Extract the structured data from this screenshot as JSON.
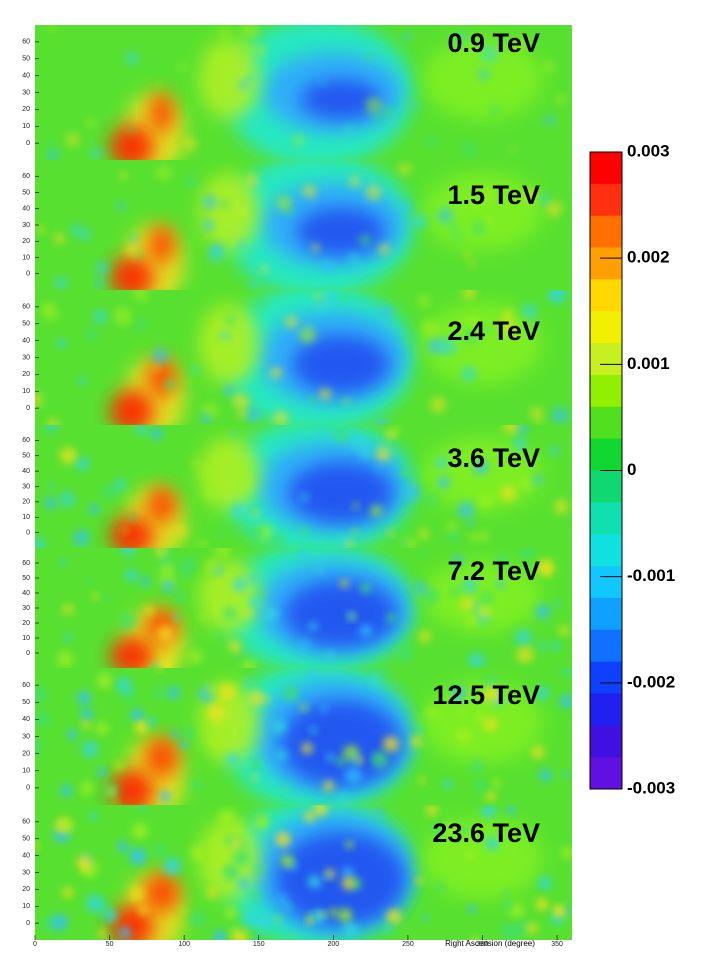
{
  "chart_data": {
    "type": "heatmap",
    "panels": [
      {
        "label": "0.9 TeV"
      },
      {
        "label": "1.5 TeV"
      },
      {
        "label": "2.4 TeV"
      },
      {
        "label": "3.6 TeV"
      },
      {
        "label": "7.2 TeV"
      },
      {
        "label": "12.5 TeV"
      },
      {
        "label": "23.6 TeV"
      }
    ],
    "xlabel": "Right Ascension (degree)",
    "xlim": [
      0,
      360
    ],
    "xticks": [
      0,
      50,
      100,
      150,
      200,
      250,
      300,
      350
    ],
    "ylim": [
      -10,
      70
    ],
    "yticks": [
      0,
      10,
      20,
      30,
      40,
      50,
      60
    ],
    "colorbar": {
      "lim": [
        -0.003,
        0.003
      ],
      "ticks": [
        0.003,
        0.002,
        0.001,
        0,
        -0.001,
        -0.002,
        -0.003
      ],
      "colors": [
        "#ff0000",
        "#ff3010",
        "#ff7000",
        "#ffa000",
        "#ffd800",
        "#f0f000",
        "#c8f020",
        "#90f000",
        "#50e020",
        "#10d830",
        "#10d870",
        "#10e0b0",
        "#10e0e0",
        "#10c8ff",
        "#10a0ff",
        "#1070ff",
        "#1040ff",
        "#2020f0",
        "#4010e0",
        "#6010e0"
      ]
    }
  }
}
